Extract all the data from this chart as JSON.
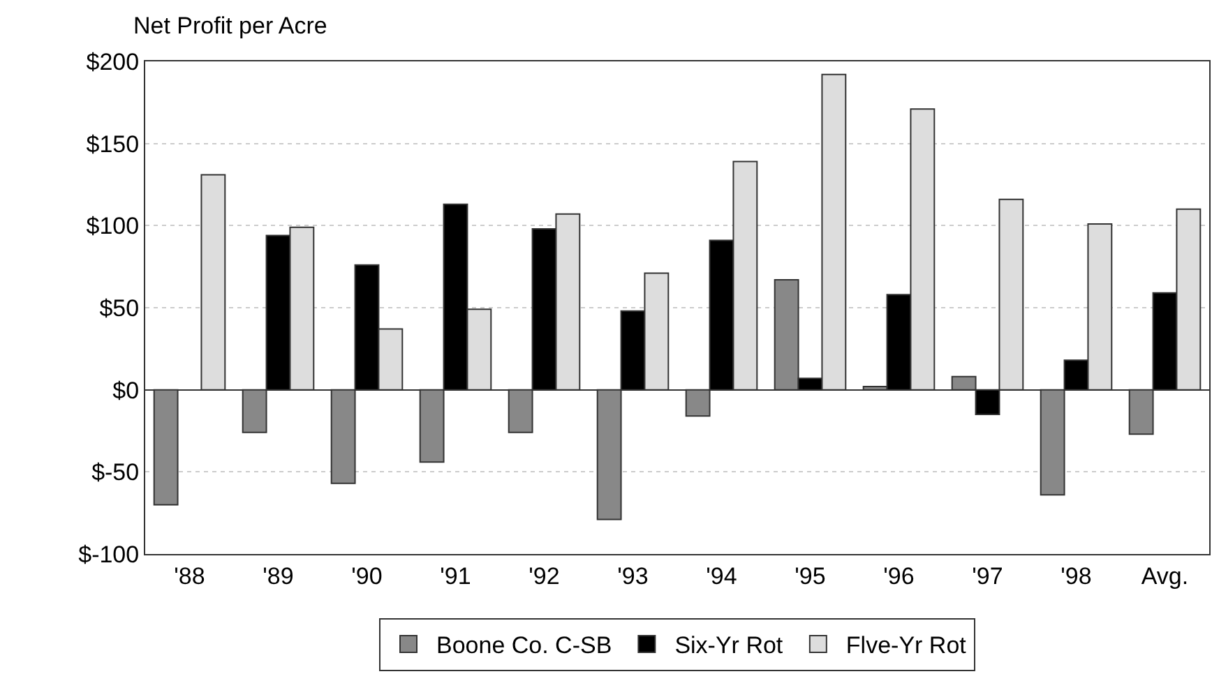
{
  "chart_data": {
    "type": "bar",
    "title": "Net Profit per Acre",
    "categories": [
      "'88",
      "'89",
      "'90",
      "'91",
      "'92",
      "'93",
      "'94",
      "'95",
      "'96",
      "'97",
      "'98",
      "Avg."
    ],
    "series": [
      {
        "name": "Boone Co. C-SB",
        "color": "#888888",
        "values": [
          -70,
          -26,
          -57,
          -44,
          -26,
          -79,
          -16,
          67,
          2,
          8,
          -64,
          -27
        ]
      },
      {
        "name": "Six-Yr Rot",
        "color": "#000000",
        "values": [
          null,
          94,
          76,
          113,
          98,
          48,
          91,
          7,
          58,
          -15,
          18,
          59
        ]
      },
      {
        "name": "Flve-Yr Rot",
        "color": "#dddddd",
        "values": [
          131,
          99,
          37,
          49,
          107,
          71,
          139,
          192,
          171,
          116,
          101,
          110
        ]
      }
    ],
    "ylim": [
      -100,
      200
    ],
    "yticks": [
      {
        "value": -100,
        "label": "$-100"
      },
      {
        "value": -50,
        "label": "$-50"
      },
      {
        "value": 0,
        "label": "$0"
      },
      {
        "value": 50,
        "label": "$50"
      },
      {
        "value": 100,
        "label": "$100"
      },
      {
        "value": 150,
        "label": "$150"
      },
      {
        "value": 200,
        "label": "$200"
      }
    ],
    "grid": "y",
    "legend": "bottom"
  }
}
